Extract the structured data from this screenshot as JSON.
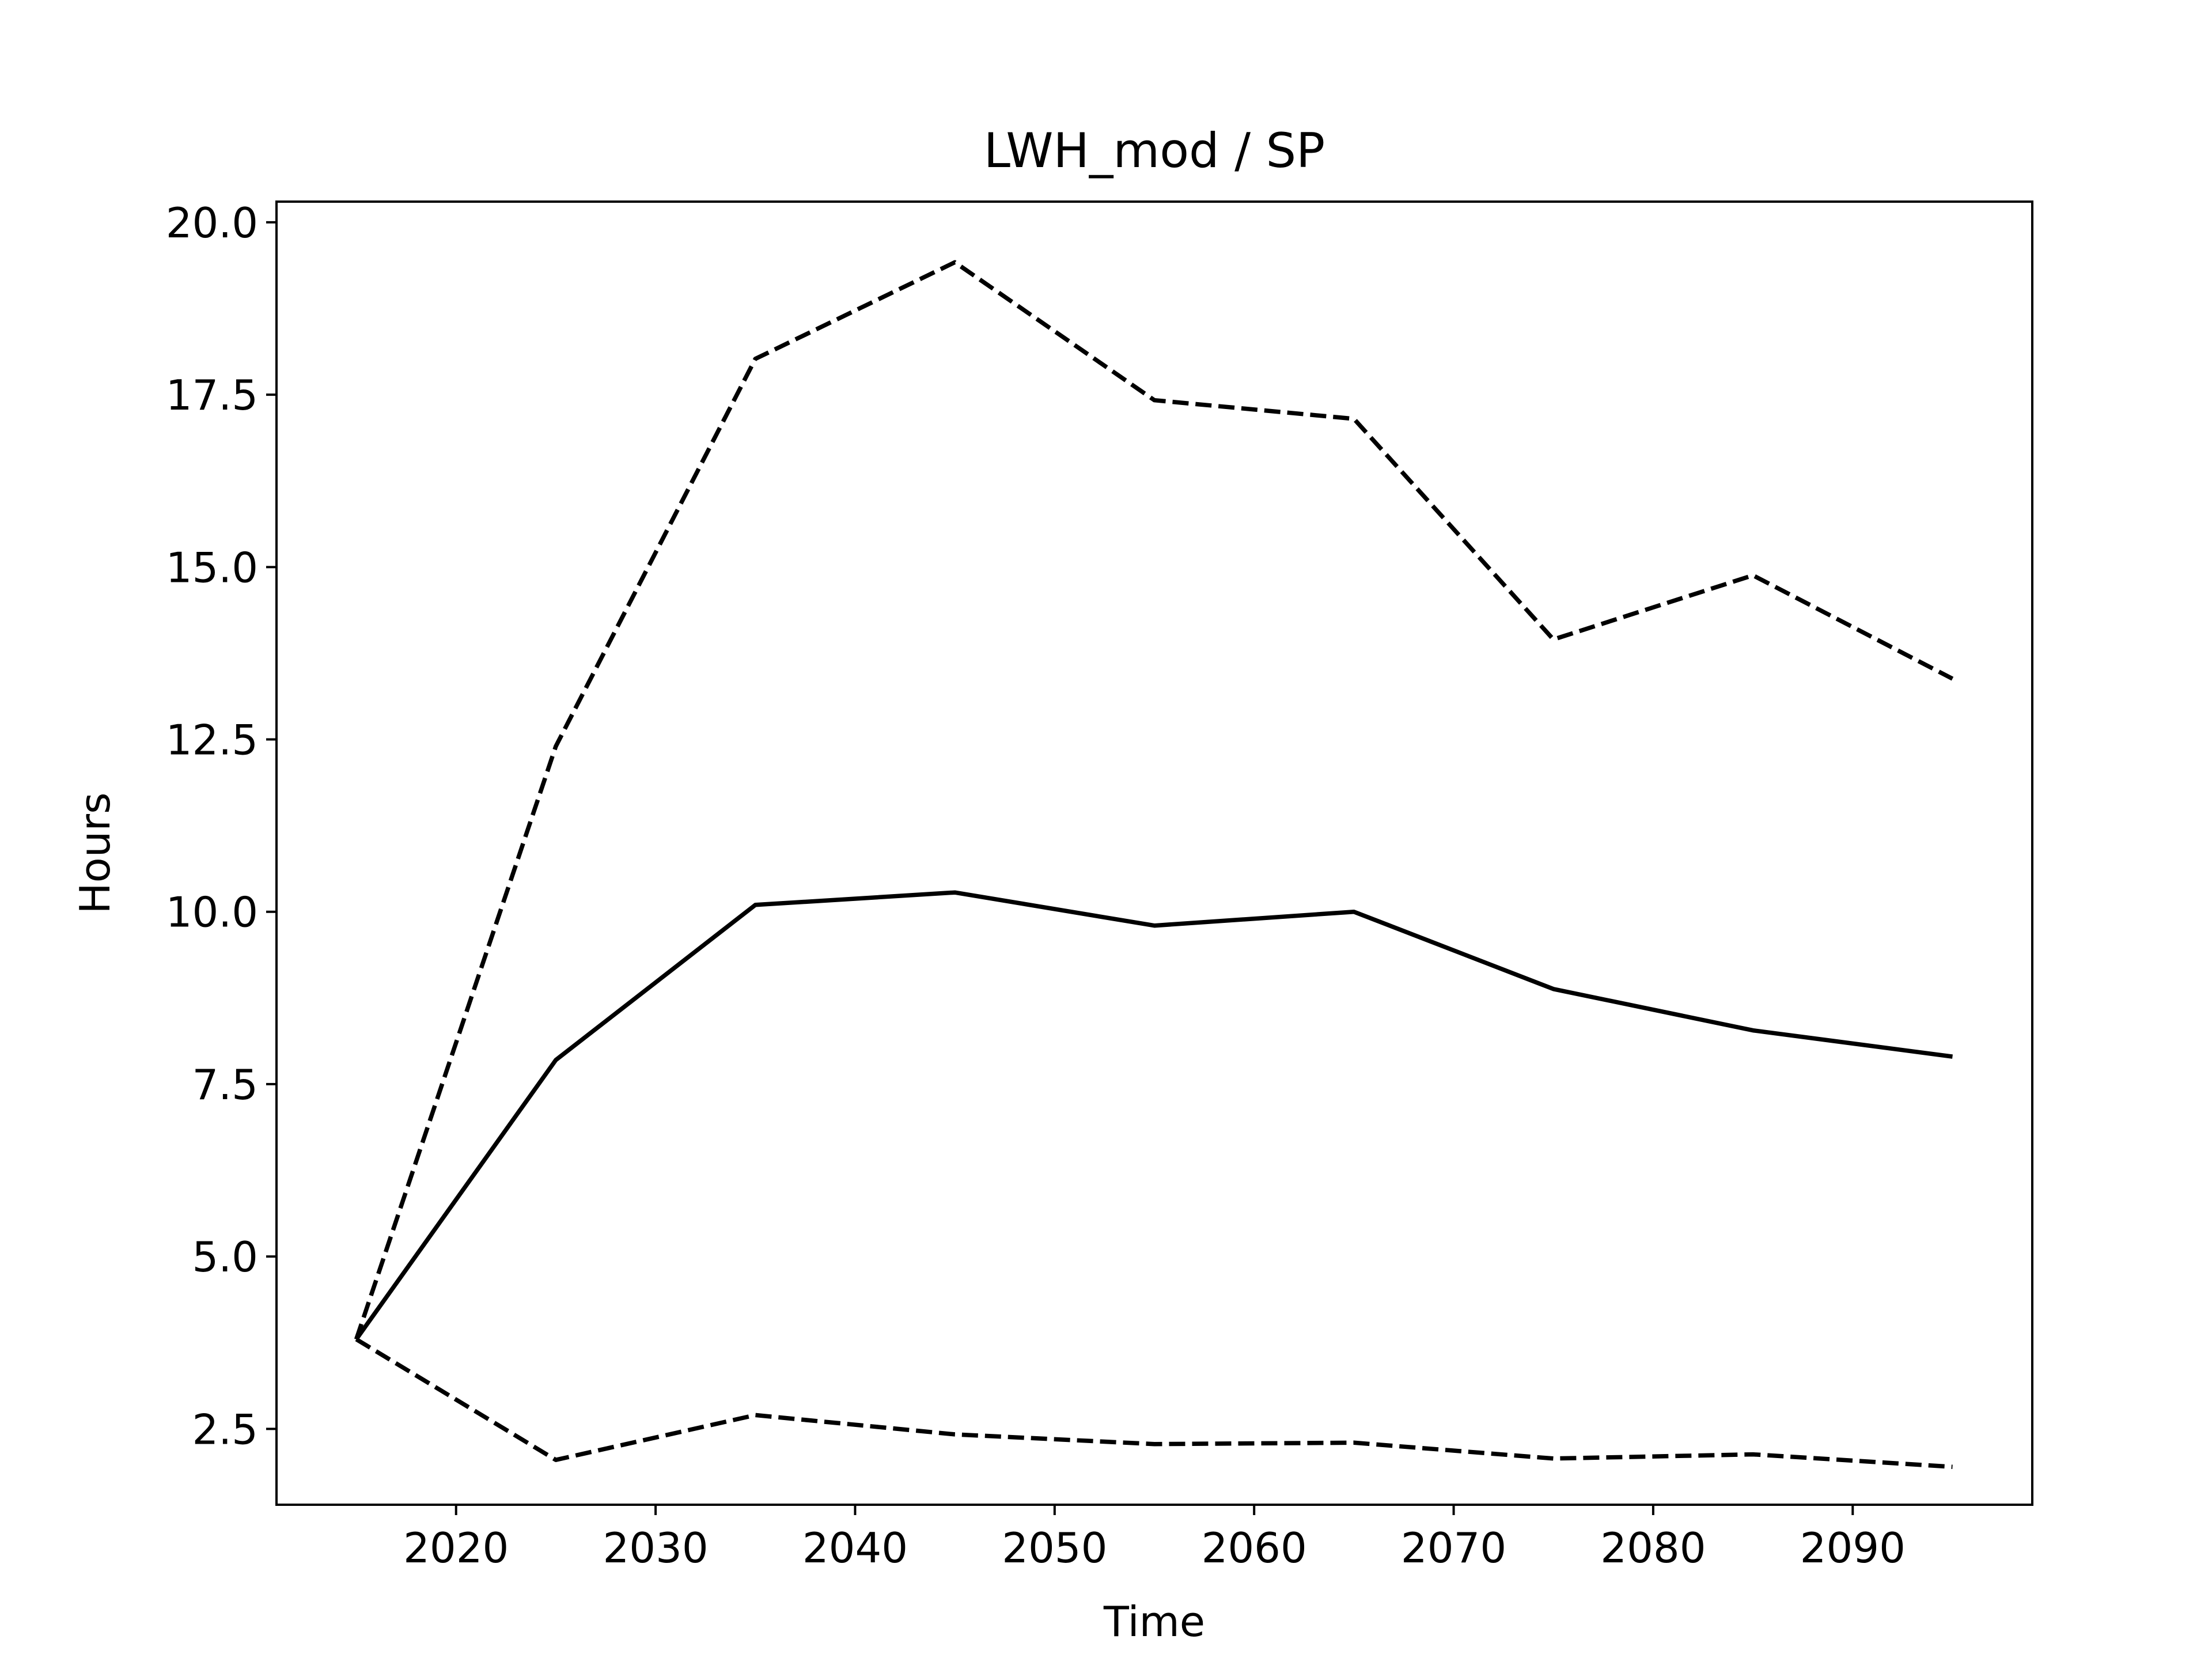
{
  "chart_data": {
    "type": "line",
    "title": "LWH_mod / SP",
    "xlabel": "Time",
    "ylabel": "Hours",
    "x": [
      2015,
      2025,
      2035,
      2045,
      2055,
      2065,
      2075,
      2085,
      2095
    ],
    "xlim": [
      2011,
      2099
    ],
    "ylim": [
      1.4,
      20.3
    ],
    "xticks": [
      2020,
      2030,
      2040,
      2050,
      2060,
      2070,
      2080,
      2090
    ],
    "yticks": [
      2.5,
      5.0,
      7.5,
      10.0,
      12.5,
      15.0,
      17.5,
      20.0
    ],
    "grid": false,
    "series": [
      {
        "style": "solid",
        "color": "#000000",
        "values": [
          3.8,
          7.85,
          10.1,
          10.28,
          9.8,
          10.0,
          8.88,
          8.28,
          7.9
        ]
      },
      {
        "style": "dashed",
        "color": "#000000",
        "values": [
          3.8,
          12.4,
          18.02,
          19.42,
          17.42,
          17.15,
          13.95,
          14.88,
          13.38
        ]
      },
      {
        "style": "dashed",
        "color": "#000000",
        "values": [
          3.8,
          2.05,
          2.7,
          2.42,
          2.28,
          2.3,
          2.07,
          2.13,
          1.95
        ]
      }
    ]
  }
}
